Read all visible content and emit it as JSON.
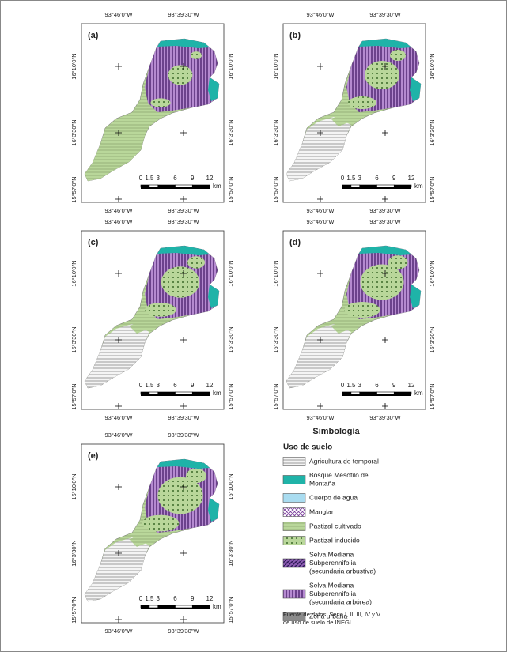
{
  "panels": [
    {
      "label": "(a)",
      "x_labels_top": [
        "93°46'0\"W",
        "93°39'30\"W"
      ],
      "x_labels_bottom": [
        "93°46'0\"W",
        "93°39'30\"W"
      ],
      "y_labels_left": [
        "16°10'0\"N",
        "16°3'30\"N",
        "15°57'0\"N"
      ],
      "y_labels_right": [
        "16°10'0\"N",
        "16°3'30\"N",
        "15°57'0\"N"
      ],
      "scale_labels": [
        "0",
        "1.5",
        "3",
        "6",
        "9",
        "12"
      ],
      "scale_unit": "km"
    },
    {
      "label": "(b)",
      "x_labels_top": [
        "93°46'0\"W",
        "93°39'30\"W"
      ],
      "x_labels_bottom": [
        "93°46'0\"W",
        "93°39'30\"W"
      ],
      "y_labels_left": [
        "16°10'0\"N",
        "16°3'30\"N",
        "15°57'0\"N"
      ],
      "y_labels_right": [
        "16°10'0\"N",
        "16°3'30\"N",
        "15°57'0\"N"
      ],
      "scale_labels": [
        "0",
        "1.5",
        "3",
        "6",
        "9",
        "12"
      ],
      "scale_unit": "km"
    },
    {
      "label": "(c)",
      "x_labels_top": [
        "93°46'0\"W",
        "93°39'30\"W"
      ],
      "x_labels_bottom": [
        "93°46'0\"W",
        "93°39'30\"W"
      ],
      "y_labels_left": [
        "16°10'0\"N",
        "16°3'30\"N",
        "15°57'0\"N"
      ],
      "y_labels_right": [
        "16°10'0\"N",
        "16°3'30\"N",
        "15°57'0\"N"
      ],
      "scale_labels": [
        "0",
        "1.5",
        "3",
        "6",
        "9",
        "12"
      ],
      "scale_unit": "km"
    },
    {
      "label": "(d)",
      "x_labels_top": [
        "93°46'0\"W",
        "93°39'30\"W"
      ],
      "x_labels_bottom": [
        "93°46'0\"W",
        "93°39'30\"W"
      ],
      "y_labels_left": [
        "16°10'0\"N",
        "16°3'30\"N",
        "15°57'0\"N"
      ],
      "y_labels_right": [
        "16°10'0\"N",
        "16°3'30\"N",
        "15°57'0\"N"
      ],
      "scale_labels": [
        "0",
        "1.5",
        "3",
        "6",
        "9",
        "12"
      ],
      "scale_unit": "km"
    },
    {
      "label": "(e)",
      "x_labels_top": [
        "93°46'0\"W",
        "93°39'30\"W"
      ],
      "x_labels_bottom": [
        "93°46'0\"W",
        "93°39'30\"W"
      ],
      "y_labels_left": [
        "16°10'0\"N",
        "16°3'30\"N",
        "15°57'0\"N"
      ],
      "y_labels_right": [
        "16°10'0\"N",
        "16°3'30\"N",
        "15°57'0\"N"
      ],
      "scale_labels": [
        "0",
        "1.5",
        "3",
        "6",
        "9",
        "12"
      ],
      "scale_unit": "km"
    }
  ],
  "legend": {
    "title": "Simbología",
    "subtitle": "Uso de suelo",
    "entries": [
      {
        "lines": [
          "Agricultura de temporal"
        ]
      },
      {
        "lines": [
          "Bosque Mesófilo de",
          "Montaña"
        ]
      },
      {
        "lines": [
          "Cuerpo de agua"
        ]
      },
      {
        "lines": [
          "Manglar"
        ]
      },
      {
        "lines": [
          "Pastizal cultivado"
        ]
      },
      {
        "lines": [
          "Pastizal inducido"
        ]
      },
      {
        "lines": [
          "Selva Mediana",
          "Subperennifolia",
          "(secundaria arbustiva)"
        ]
      },
      {
        "lines": [
          "Selva Mediana",
          "Subperennifolia",
          "(secundaria arbórea)"
        ]
      },
      {
        "lines": [
          "Zona urbana"
        ]
      }
    ],
    "source": [
      "Fuente de datos: Serie I, II, III, IV y V.",
      "de uso de suelo de INEGI."
    ]
  }
}
